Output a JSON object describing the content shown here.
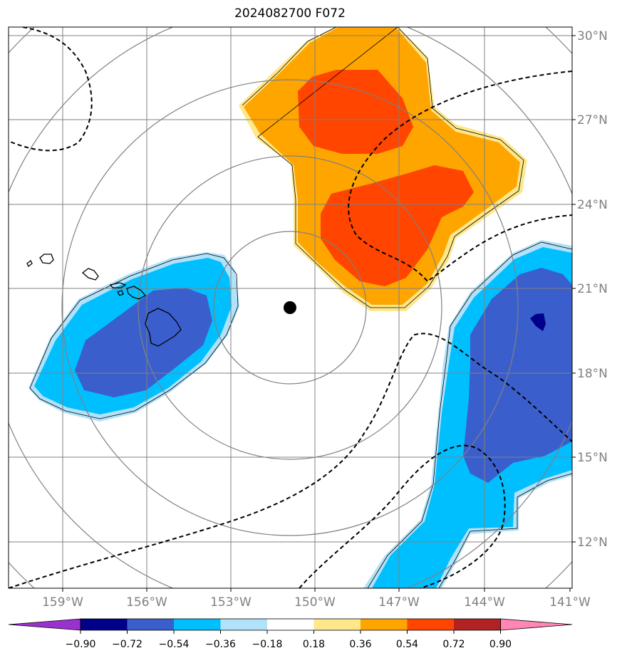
{
  "title": "2024082700 F072",
  "map": {
    "lon_range": [
      -161,
      -141
    ],
    "lat_range": [
      10.5,
      30.5
    ],
    "lon_ticks": [
      "159°W",
      "156°W",
      "153°W",
      "150°W",
      "147°W",
      "144°W",
      "141°W"
    ],
    "lat_ticks": [
      "30°N",
      "27°N",
      "24°N",
      "21°N",
      "18°N",
      "15°N",
      "12°N"
    ],
    "center_marker": {
      "lon": -151,
      "lat": 20.3
    },
    "range_rings": 5
  },
  "colorbar": {
    "labels": [
      "−0.90",
      "−0.72",
      "−0.54",
      "−0.36",
      "−0.18",
      "0.18",
      "0.36",
      "0.54",
      "0.72",
      "0.90"
    ],
    "colors": [
      "#9932cc",
      "#00008b",
      "#3a5fcd",
      "#00bfff",
      "#b2e2fa",
      "#ffffff",
      "#ffe78c",
      "#ffa500",
      "#ff4500",
      "#b22222",
      "#ff86b5"
    ]
  },
  "fill_colors": {
    "pos_light": "#ffe78c",
    "pos_mid": "#ffa500",
    "pos_strong": "#ff4500",
    "neg_light": "#b2e2fa",
    "neg_mid": "#00bfff",
    "neg_strong": "#3a5fcd",
    "neg_extreme": "#00008b"
  }
}
